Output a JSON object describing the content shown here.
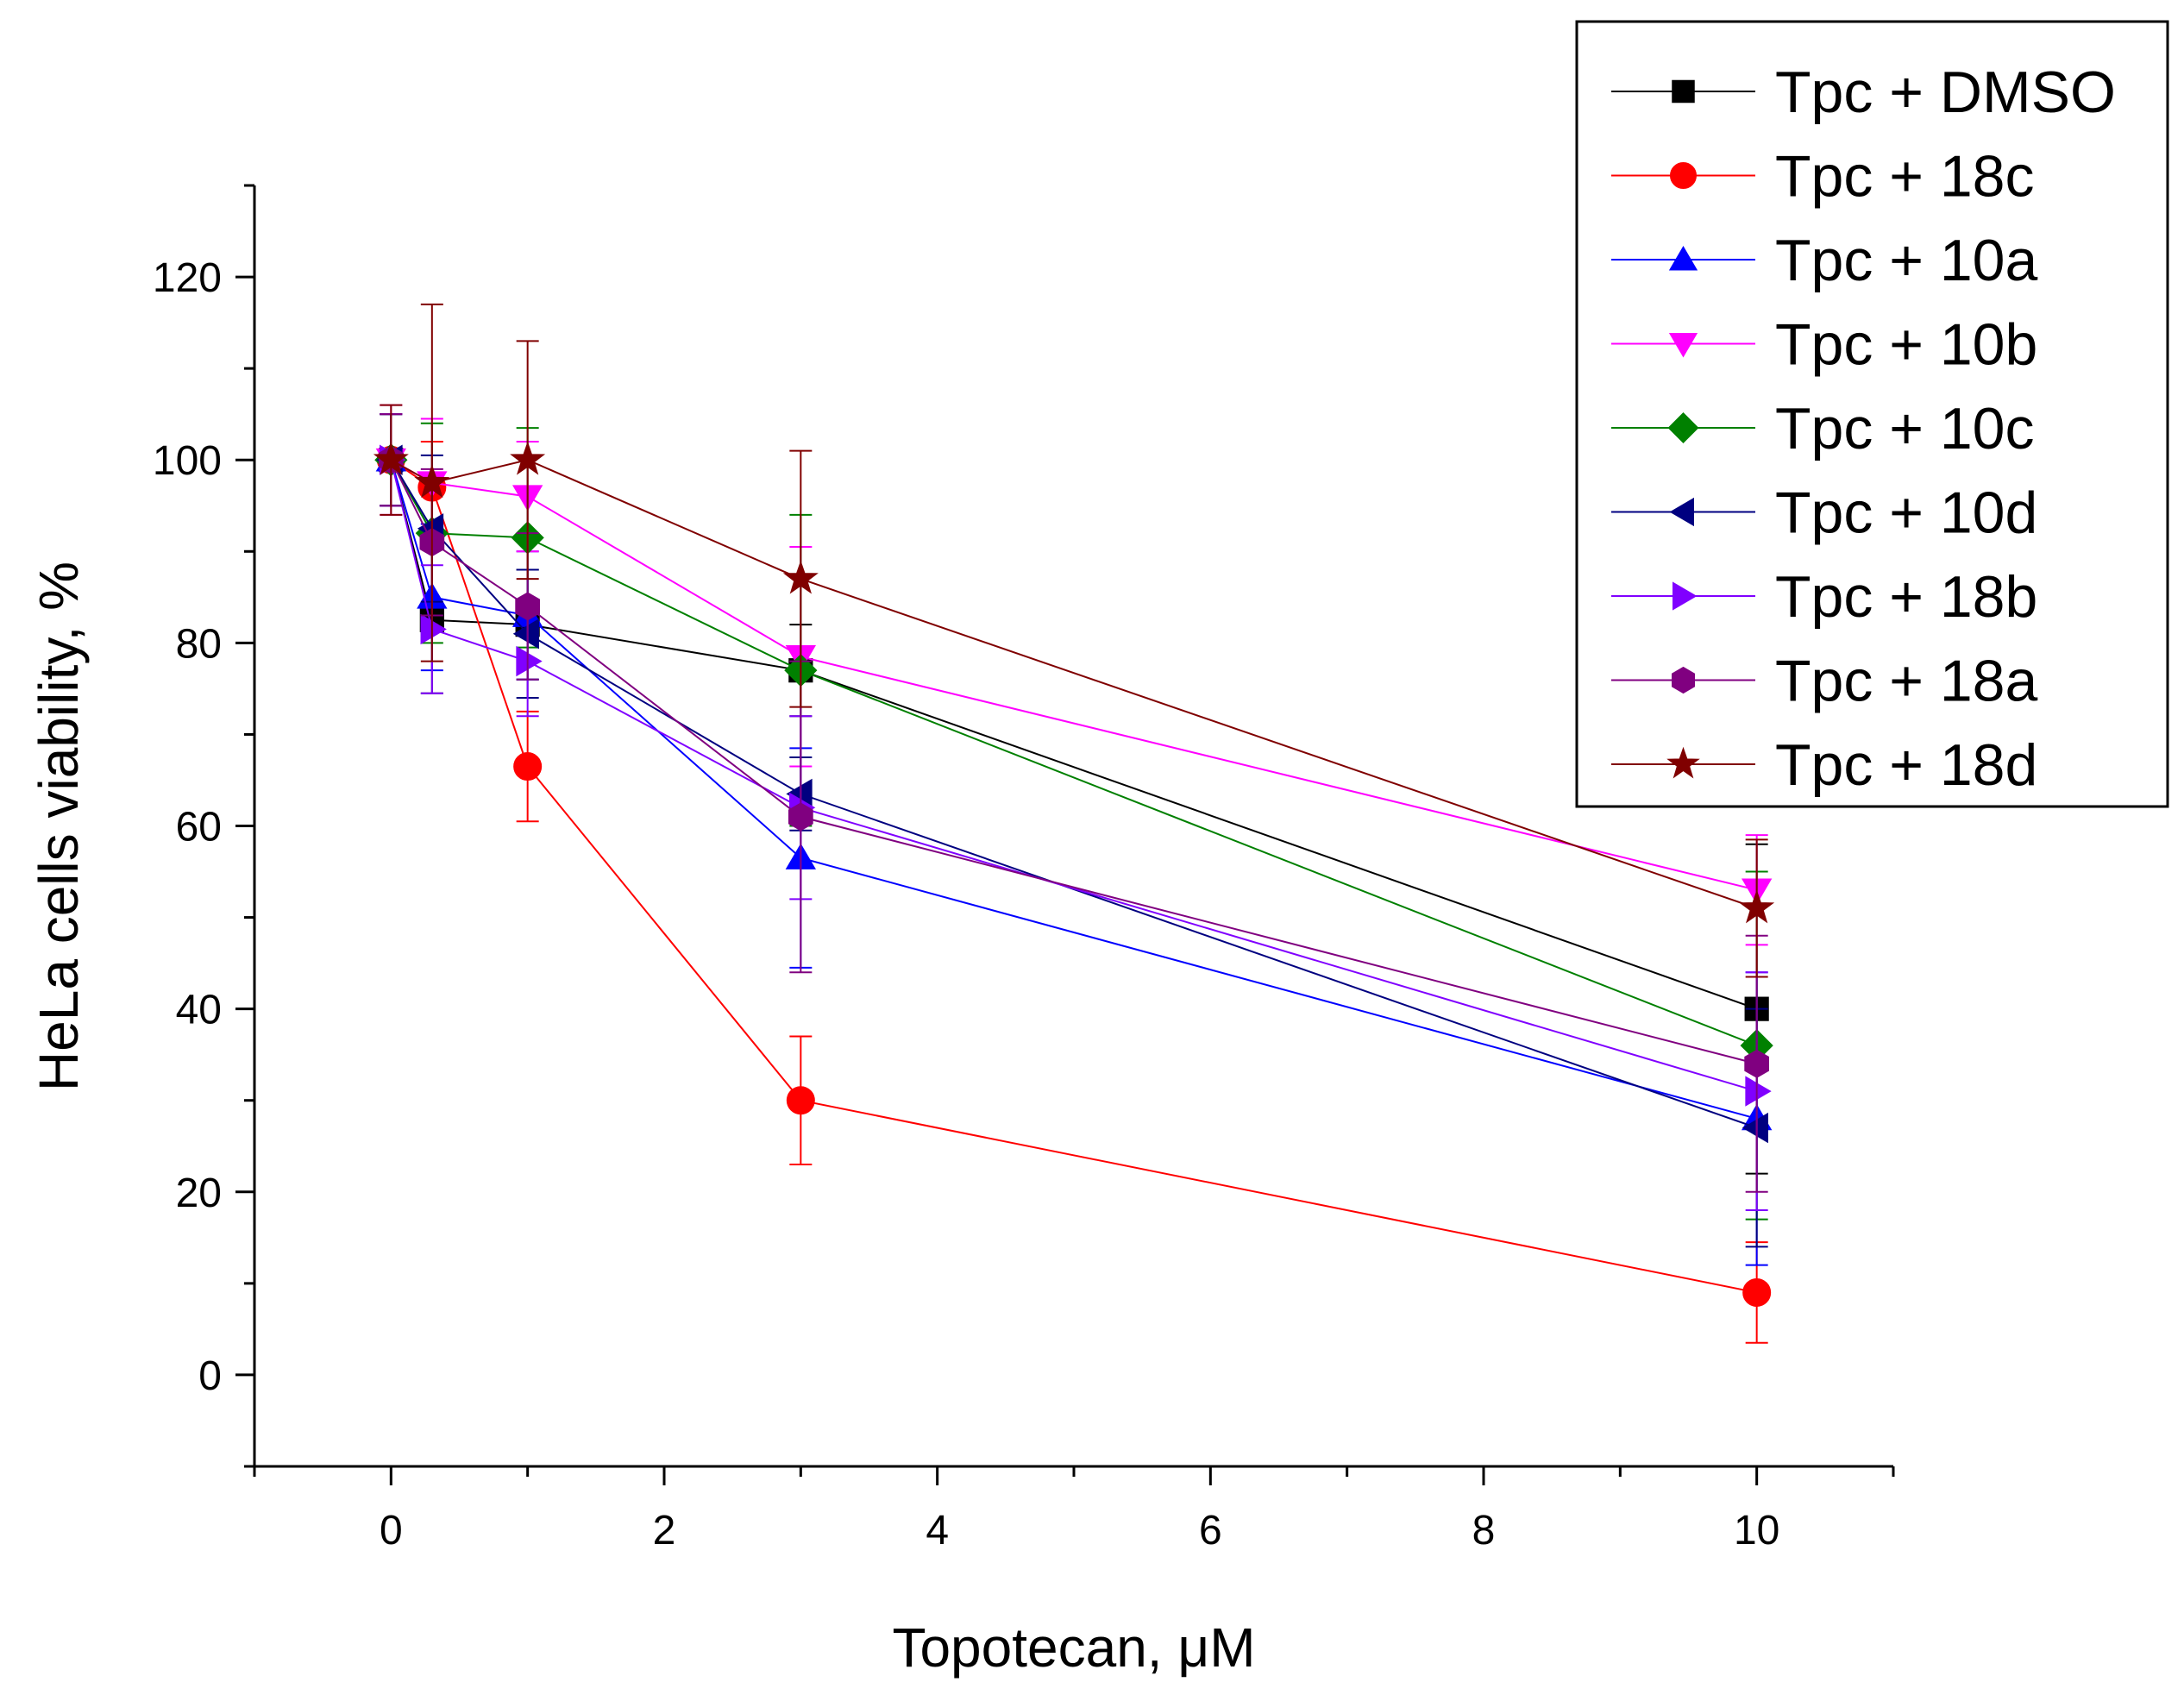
{
  "chart_data": {
    "type": "line",
    "title": "",
    "xlabel": "Topotecan, μM",
    "ylabel": "HeLa cells viability, %",
    "xlim": [
      -1,
      11
    ],
    "ylim": [
      -10,
      130
    ],
    "x_ticks": [
      0,
      2,
      4,
      6,
      8,
      10
    ],
    "y_ticks": [
      0,
      20,
      40,
      60,
      80,
      100,
      120
    ],
    "x_tick_labels": [
      "0",
      "2",
      "4",
      "6",
      "8",
      "10"
    ],
    "y_tick_labels": [
      "0",
      "20",
      "40",
      "60",
      "80",
      "100",
      "120"
    ],
    "grid": false,
    "legend_position": "top-right",
    "x": [
      0,
      0.3,
      1,
      3,
      10
    ],
    "series": [
      {
        "name": "Tpc + DMSO",
        "color": "#000000",
        "marker": "square",
        "values": [
          100,
          82.5,
          82,
          77,
          40
        ],
        "errors": [
          5,
          8,
          6,
          5,
          18
        ]
      },
      {
        "name": "Tpc + 18c",
        "color": "#ff0000",
        "marker": "circle",
        "values": [
          100,
          97,
          66.5,
          30,
          9
        ],
        "errors": [
          5,
          5,
          6,
          7,
          5.5
        ]
      },
      {
        "name": "Tpc + 10a",
        "color": "#0000ff",
        "marker": "triangle-up",
        "values": [
          100,
          85,
          83,
          56.5,
          28
        ],
        "errors": [
          5,
          8,
          7,
          12,
          16
        ]
      },
      {
        "name": "Tpc + 10b",
        "color": "#ff00ff",
        "marker": "triangle-down",
        "values": [
          100,
          97.5,
          96,
          78.5,
          53
        ],
        "errors": [
          6,
          7,
          6,
          12,
          6
        ]
      },
      {
        "name": "Tpc + 10c",
        "color": "#008000",
        "marker": "diamond",
        "values": [
          100,
          92,
          91.5,
          77,
          36
        ],
        "errors": [
          5,
          12,
          12,
          17,
          19
        ]
      },
      {
        "name": "Tpc + 10d",
        "color": "#000080",
        "marker": "triangle-left",
        "values": [
          100,
          92.5,
          81,
          63.5,
          27
        ],
        "errors": [
          5,
          8,
          7,
          4,
          13
        ]
      },
      {
        "name": "Tpc + 18b",
        "color": "#8000ff",
        "marker": "triangle-right",
        "values": [
          100,
          81.5,
          78,
          62,
          31
        ],
        "errors": [
          5,
          7,
          6,
          10,
          13
        ]
      },
      {
        "name": "Tpc + 18a",
        "color": "#800080",
        "marker": "hexagon",
        "values": [
          100,
          91,
          84,
          61,
          34
        ],
        "errors": [
          5,
          8,
          8,
          17,
          14
        ]
      },
      {
        "name": "Tpc + 18d",
        "color": "#800000",
        "marker": "star",
        "values": [
          100,
          97.5,
          100,
          87,
          51
        ],
        "errors": [
          6,
          19.5,
          13,
          14,
          7.5
        ]
      }
    ]
  }
}
